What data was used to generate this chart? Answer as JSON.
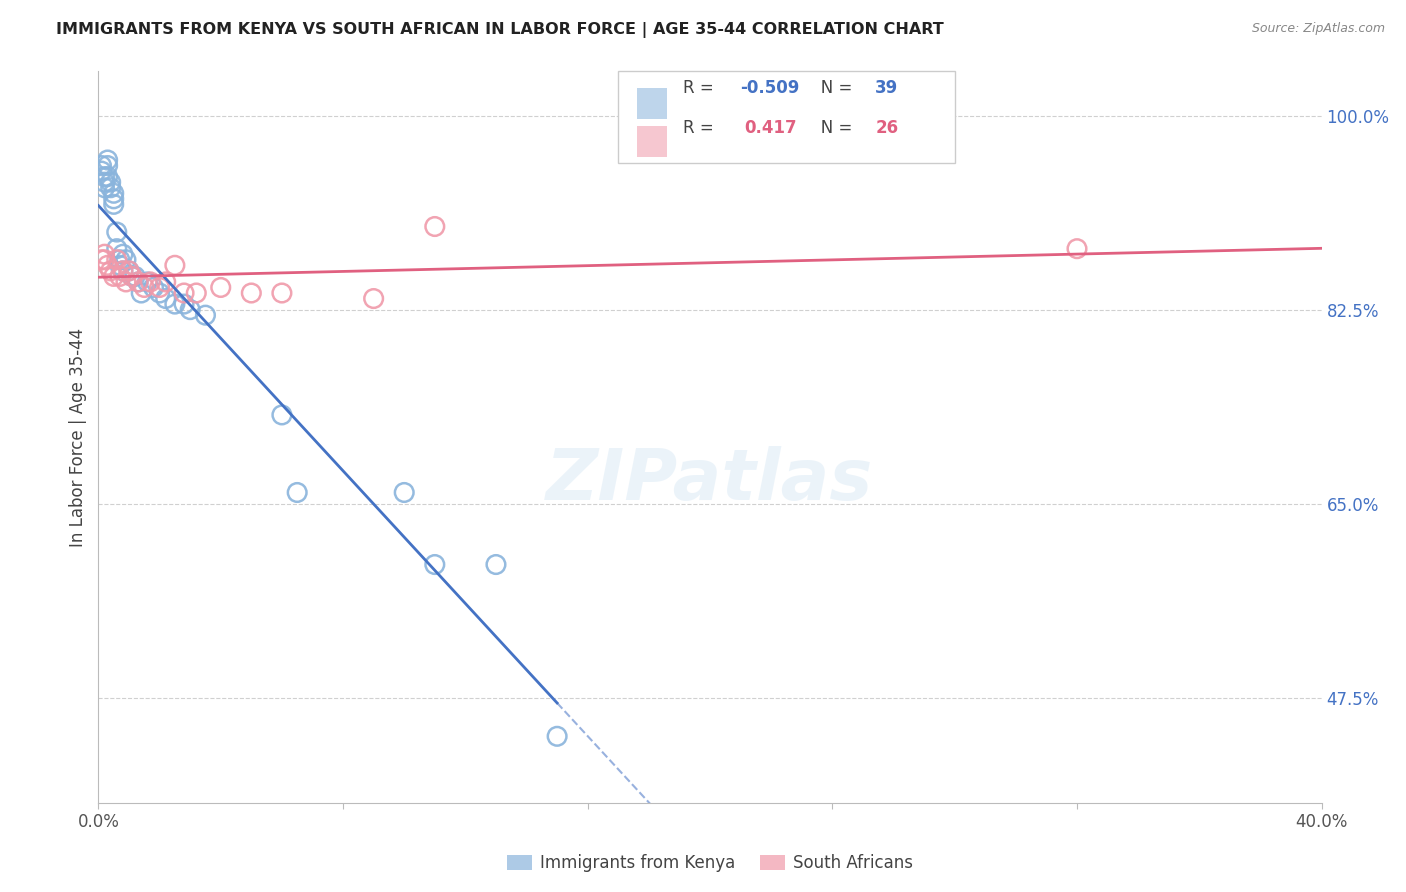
{
  "title": "IMMIGRANTS FROM KENYA VS SOUTH AFRICAN IN LABOR FORCE | AGE 35-44 CORRELATION CHART",
  "source": "Source: ZipAtlas.com",
  "ylabel": "In Labor Force | Age 35-44",
  "xlim": [
    0.0,
    0.4
  ],
  "ylim": [
    0.38,
    1.04
  ],
  "yticks_right": [
    0.475,
    0.65,
    0.825,
    1.0
  ],
  "yticklabels_right": [
    "47.5%",
    "65.0%",
    "82.5%",
    "100.0%"
  ],
  "kenya_R": -0.509,
  "kenya_N": 39,
  "sa_R": 0.417,
  "sa_N": 26,
  "kenya_color": "#8ab4dc",
  "sa_color": "#f09aaa",
  "kenya_line_color": "#4472c4",
  "sa_line_color": "#e06080",
  "kenya_x": [
    0.001,
    0.001,
    0.002,
    0.002,
    0.002,
    0.003,
    0.003,
    0.003,
    0.004,
    0.004,
    0.005,
    0.005,
    0.005,
    0.006,
    0.006,
    0.007,
    0.007,
    0.008,
    0.008,
    0.009,
    0.01,
    0.011,
    0.012,
    0.013,
    0.014,
    0.016,
    0.018,
    0.02,
    0.022,
    0.025,
    0.028,
    0.03,
    0.035,
    0.06,
    0.065,
    0.1,
    0.11,
    0.13,
    0.15
  ],
  "kenya_y": [
    0.955,
    0.95,
    0.945,
    0.94,
    0.935,
    0.96,
    0.955,
    0.945,
    0.94,
    0.935,
    0.93,
    0.925,
    0.92,
    0.895,
    0.88,
    0.87,
    0.865,
    0.875,
    0.86,
    0.87,
    0.86,
    0.855,
    0.855,
    0.85,
    0.84,
    0.85,
    0.845,
    0.84,
    0.835,
    0.83,
    0.83,
    0.825,
    0.82,
    0.73,
    0.66,
    0.66,
    0.595,
    0.595,
    0.44
  ],
  "sa_x": [
    0.001,
    0.002,
    0.002,
    0.003,
    0.004,
    0.005,
    0.006,
    0.007,
    0.008,
    0.009,
    0.01,
    0.011,
    0.013,
    0.015,
    0.017,
    0.02,
    0.022,
    0.025,
    0.028,
    0.032,
    0.04,
    0.05,
    0.06,
    0.09,
    0.11,
    0.32
  ],
  "sa_y": [
    0.87,
    0.875,
    0.87,
    0.865,
    0.86,
    0.855,
    0.87,
    0.855,
    0.86,
    0.85,
    0.86,
    0.855,
    0.85,
    0.845,
    0.85,
    0.845,
    0.85,
    0.865,
    0.84,
    0.84,
    0.845,
    0.84,
    0.84,
    0.835,
    0.9,
    0.88
  ],
  "watermark": "ZIPatlas",
  "background_color": "#ffffff",
  "grid_color": "#d0d0d0"
}
